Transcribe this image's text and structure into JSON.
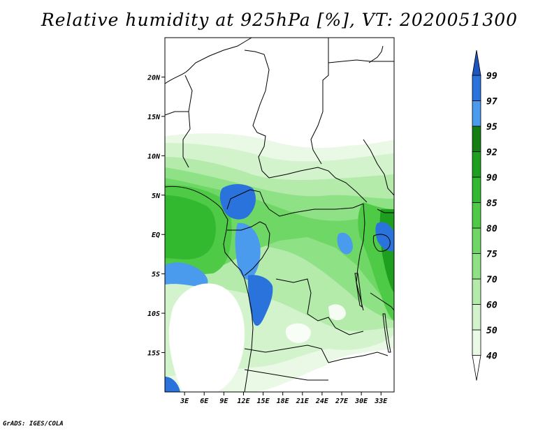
{
  "title": "Relative humidity at 925hPa [%], VT: 2020051300",
  "credit": "GrADS: IGES/COLA",
  "map": {
    "lon_range": [
      0,
      35
    ],
    "lat_range": [
      -20,
      25
    ],
    "x_ticks": [
      "3E",
      "6E",
      "9E",
      "12E",
      "15E",
      "18E",
      "21E",
      "24E",
      "27E",
      "30E",
      "33E"
    ],
    "x_tick_values": [
      3,
      6,
      9,
      12,
      15,
      18,
      21,
      24,
      27,
      30,
      33
    ],
    "y_ticks": [
      "20N",
      "15N",
      "10N",
      "5N",
      "EQ",
      "5S",
      "10S",
      "15S"
    ],
    "y_tick_values": [
      20,
      15,
      10,
      5,
      0,
      -5,
      -10,
      -15
    ]
  },
  "colorbar": {
    "levels": [
      "40",
      "50",
      "60",
      "70",
      "75",
      "80",
      "85",
      "90",
      "92",
      "95",
      "97",
      "99"
    ],
    "colors": [
      "#ffffff",
      "#eaf9e6",
      "#d2f3cb",
      "#b4ebab",
      "#8fe185",
      "#6fd765",
      "#4fca47",
      "#32b92f",
      "#1f9f1f",
      "#137f13",
      "#4a9aee",
      "#2a72dc",
      "#1c55c0"
    ]
  },
  "chart_data": {
    "type": "heatmap",
    "title": "Relative humidity at 925hPa [%], VT: 2020051300",
    "variable": "Relative humidity",
    "level": "925hPa",
    "units": "%",
    "valid_time": "2020051300",
    "x_axis_ticks": [
      "3E",
      "6E",
      "9E",
      "12E",
      "15E",
      "18E",
      "21E",
      "24E",
      "27E",
      "30E",
      "33E"
    ],
    "y_axis_ticks": [
      "20N",
      "15N",
      "10N",
      "5N",
      "EQ",
      "5S",
      "10S",
      "15S"
    ],
    "contour_levels": [
      40,
      50,
      60,
      70,
      75,
      80,
      85,
      90,
      92,
      95,
      97,
      99
    ]
  }
}
